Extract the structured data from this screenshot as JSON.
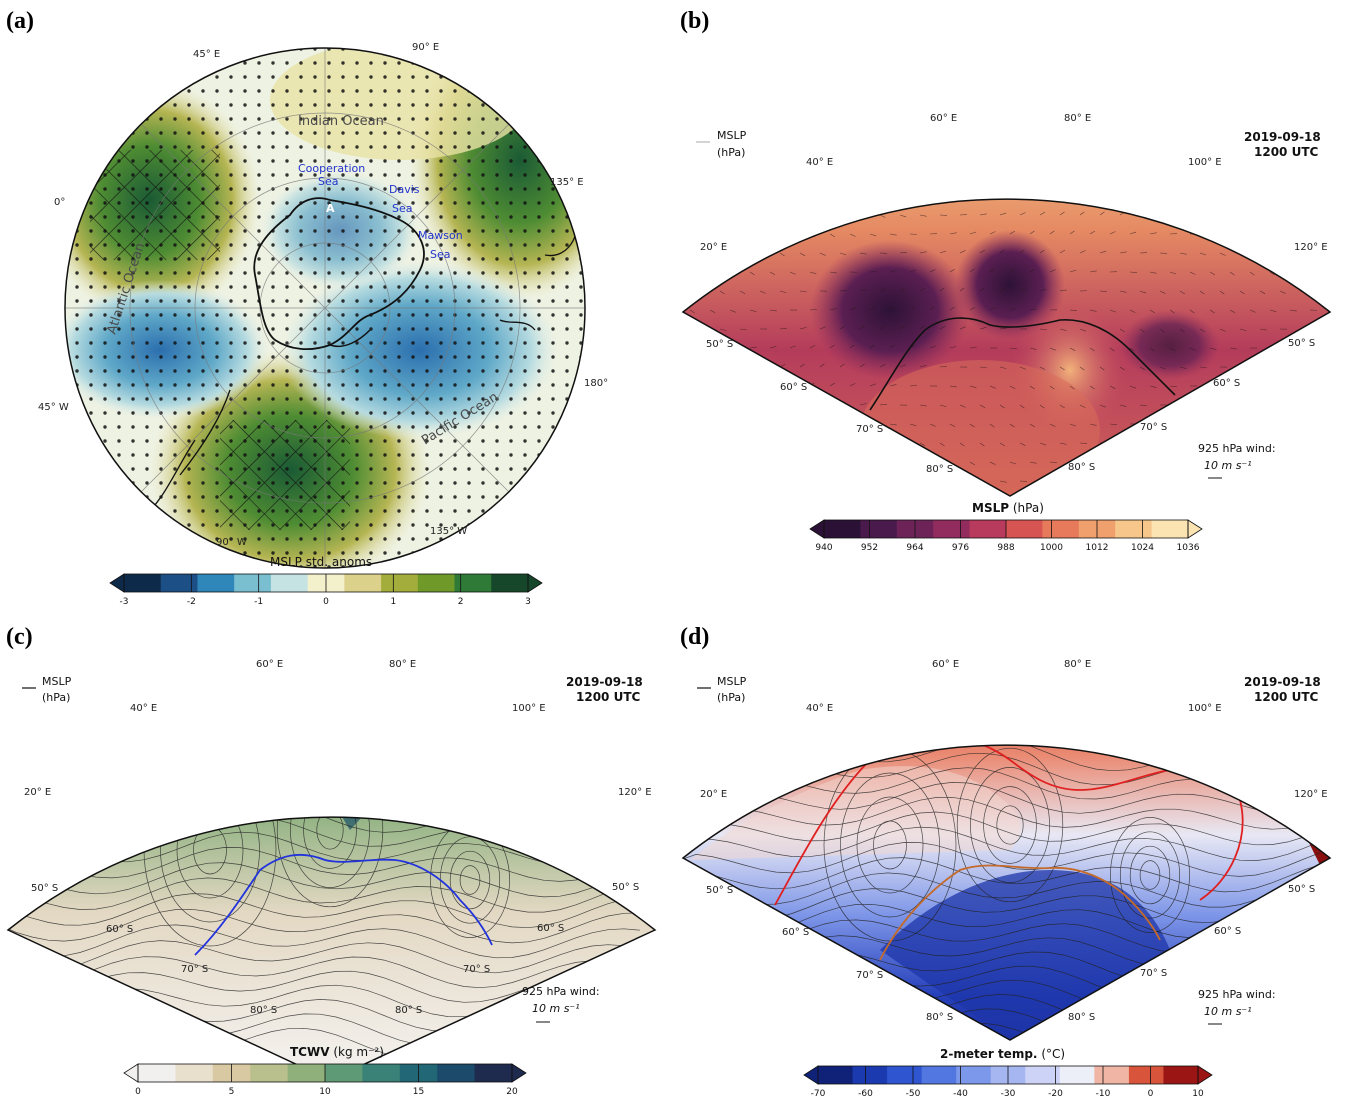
{
  "panels": {
    "a": {
      "label": "(a)",
      "lon_labels": [
        "45° E",
        "90° E",
        "135° E",
        "0°",
        "180°",
        "45° W",
        "90° W",
        "135° W"
      ],
      "ocean_labels": [
        "Indian Ocean",
        "Atlantic Ocean",
        "Pacific Ocean"
      ],
      "sea_labels": [
        "Cooperation",
        "Sea",
        "Davis",
        "Sea",
        "Mawson",
        "Sea"
      ],
      "point_label": "A",
      "colorbar": {
        "title": "MSLP std. anoms",
        "ticks": [
          "-3",
          "-2",
          "-1",
          "0",
          "1",
          "2",
          "3"
        ],
        "colors": [
          "#0e2a4a",
          "#1c4f86",
          "#2f86b8",
          "#79bfd0",
          "#c6e3e3",
          "#f3f0cc",
          "#dbd18a",
          "#a3ad3b",
          "#6f9a2a",
          "#2f7a36",
          "#17472a"
        ]
      }
    },
    "b": {
      "label": "(b)",
      "legend_top": "MSLP",
      "legend_unit": "(hPa)",
      "date": "2019-09-18",
      "time": "1200 UTC",
      "lon_labels": [
        "60° E",
        "80° E",
        "40° E",
        "100° E",
        "20° E",
        "120° E"
      ],
      "lat_labels": [
        "50° S",
        "60° S",
        "70° S",
        "80° S",
        "50° S",
        "60° S",
        "70° S",
        "80° S"
      ],
      "wind_label": "925 hPa wind:",
      "wind_scale": "10 m s⁻¹",
      "colorbar": {
        "title": "MSLP",
        "unit": "(hPa)",
        "ticks": [
          "940",
          "952",
          "964",
          "976",
          "988",
          "1000",
          "1012",
          "1024",
          "1036"
        ],
        "colors": [
          "#2b1135",
          "#4a1a4d",
          "#6e2358",
          "#922c5e",
          "#b83a5c",
          "#d65552",
          "#e67a5a",
          "#f0a06d",
          "#f7c68b",
          "#fbe3b2"
        ]
      }
    },
    "c": {
      "label": "(c)",
      "legend_top": "MSLP",
      "legend_unit": "(hPa)",
      "date": "2019-09-18",
      "time": "1200 UTC",
      "lon_labels": [
        "60° E",
        "80° E",
        "40° E",
        "100° E",
        "20° E",
        "120° E"
      ],
      "lat_labels": [
        "50° S",
        "60° S",
        "70° S",
        "80° S",
        "50° S",
        "60° S",
        "70° S",
        "80° S"
      ],
      "wind_label": "925 hPa wind:",
      "wind_scale": "10 m s⁻¹",
      "colorbar": {
        "title": "TCWV",
        "unit": "(kg m⁻²)",
        "ticks": [
          "0",
          "5",
          "10",
          "15",
          "20"
        ],
        "colors": [
          "#f2f0ee",
          "#e9dfcd",
          "#d8c9a3",
          "#b9c08e",
          "#8fb07b",
          "#5f9a76",
          "#3a8277",
          "#226775",
          "#1b4a6a",
          "#1f2a4f"
        ]
      }
    },
    "d": {
      "label": "(d)",
      "legend_top": "MSLP",
      "legend_unit": "(hPa)",
      "date": "2019-09-18",
      "time": "1200 UTC",
      "lon_labels": [
        "60° E",
        "80° E",
        "40° E",
        "100° E",
        "20° E",
        "120° E"
      ],
      "lat_labels": [
        "50° S",
        "60° S",
        "70° S",
        "80° S",
        "50° S",
        "60° S",
        "70° S",
        "80° S"
      ],
      "wind_label": "925 hPa wind:",
      "wind_scale": "10 m s⁻¹",
      "colorbar": {
        "title": "2-meter temp.",
        "unit": "(°C)",
        "ticks": [
          "-70",
          "-60",
          "-50",
          "-40",
          "-30",
          "-20",
          "-10",
          "0",
          "10"
        ],
        "colors": [
          "#0f2277",
          "#1c3ab0",
          "#2f55d1",
          "#5377e0",
          "#7c98ea",
          "#a6b6f0",
          "#cdd3f6",
          "#eceef8",
          "#f0b5a5",
          "#d8553c",
          "#9c1515"
        ]
      }
    }
  }
}
